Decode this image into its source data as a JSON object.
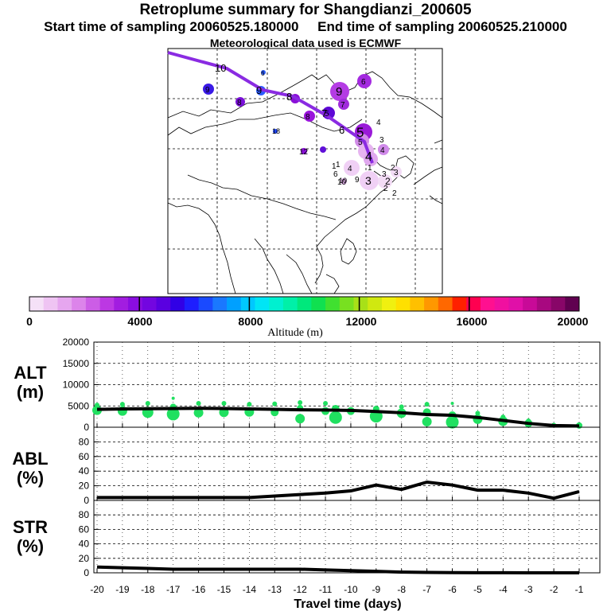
{
  "header": {
    "title": "Retroplume summary for Shangdianzi_200605",
    "sampling_line": "Start time of sampling 20060525.180000     End time of sampling 20060525.210000",
    "met_line": "Meteorological data used is ECMWF"
  },
  "chart_data": [
    {
      "type": "map",
      "description_title": "Retroplume trajectory map",
      "trajectory_labels": [
        "10",
        "9",
        "8",
        "7",
        "6",
        "5",
        "4",
        "3",
        "2",
        "1"
      ],
      "cluster_labels_visible": [
        "9",
        "9",
        "8",
        "8",
        "7",
        "6",
        "6",
        "5",
        "5",
        "4",
        "4",
        "4",
        "3",
        "3",
        "3",
        "2",
        "2",
        "2",
        "1",
        "1",
        "10",
        "10",
        "12",
        "18",
        "6",
        "9"
      ]
    },
    {
      "type": "colorbar",
      "xlabel": "Altitude (m)",
      "range": [
        0,
        20000
      ],
      "tick_labels": [
        "0",
        "4000",
        "8000",
        "12000",
        "16000",
        "20000"
      ],
      "colors": [
        "#f5e1f7",
        "#efc4f3",
        "#e6a6ef",
        "#dc84ea",
        "#cc5de6",
        "#bc38e3",
        "#a21de0",
        "#8a0de0",
        "#7306e0",
        "#5a00e0",
        "#3100e6",
        "#1e1eff",
        "#1a4aff",
        "#1a78ff",
        "#00a0ff",
        "#00c8ff",
        "#00e5f5",
        "#00f0d0",
        "#00f0a8",
        "#00e87c",
        "#10e050",
        "#40e030",
        "#78e020",
        "#a8e018",
        "#d0e810",
        "#f0f010",
        "#ffe000",
        "#ffc000",
        "#ff9800",
        "#ff6800",
        "#ff2000",
        "#ff0050",
        "#ff1090",
        "#f010a0",
        "#e010a8",
        "#c80a98",
        "#a80880",
        "#880668",
        "#600050"
      ]
    },
    {
      "type": "line",
      "name": "ALT",
      "ylabel": "ALT (m)",
      "ylabel_top": "ALT",
      "ylabel_unit": "(m)",
      "ylim": [
        0,
        20000
      ],
      "yticks": [
        "0",
        "5000",
        "10000",
        "15000",
        "20000"
      ],
      "x": [
        -20,
        -19,
        -18,
        -17,
        -16,
        -15,
        -14,
        -13,
        -12,
        -11,
        -10,
        -9,
        -8,
        -7,
        -6,
        -5,
        -4,
        -3,
        -2,
        -1
      ],
      "values": [
        4200,
        4300,
        4350,
        4400,
        4450,
        4400,
        4300,
        4200,
        4100,
        4050,
        3950,
        3700,
        3400,
        3000,
        2800,
        2300,
        1600,
        900,
        400,
        300
      ],
      "scatter_points": [
        {
          "x": -20,
          "y": 4000,
          "r": 6
        },
        {
          "x": -20,
          "y": 5200,
          "r": 3
        },
        {
          "x": -19,
          "y": 3800,
          "r": 6
        },
        {
          "x": -19,
          "y": 5400,
          "r": 3
        },
        {
          "x": -18,
          "y": 3500,
          "r": 7
        },
        {
          "x": -18,
          "y": 5600,
          "r": 3
        },
        {
          "x": -17,
          "y": 3100,
          "r": 8
        },
        {
          "x": -17,
          "y": 4800,
          "r": 4
        },
        {
          "x": -17,
          "y": 6800,
          "r": 2
        },
        {
          "x": -16,
          "y": 3400,
          "r": 6
        },
        {
          "x": -16,
          "y": 5600,
          "r": 3
        },
        {
          "x": -15,
          "y": 3500,
          "r": 6
        },
        {
          "x": -15,
          "y": 5600,
          "r": 3
        },
        {
          "x": -14,
          "y": 3600,
          "r": 6
        },
        {
          "x": -14,
          "y": 5400,
          "r": 3
        },
        {
          "x": -13,
          "y": 3500,
          "r": 5
        },
        {
          "x": -13,
          "y": 5500,
          "r": 3
        },
        {
          "x": -12,
          "y": 2000,
          "r": 6
        },
        {
          "x": -12,
          "y": 4500,
          "r": 4
        },
        {
          "x": -12,
          "y": 5800,
          "r": 3
        },
        {
          "x": -11,
          "y": 3800,
          "r": 5
        },
        {
          "x": -11,
          "y": 5600,
          "r": 3
        },
        {
          "x": -10.6,
          "y": 2300,
          "r": 8
        },
        {
          "x": -10.6,
          "y": 4300,
          "r": 5
        },
        {
          "x": -10,
          "y": 3800,
          "r": 5
        },
        {
          "x": -9,
          "y": 2600,
          "r": 8
        },
        {
          "x": -9,
          "y": 4300,
          "r": 4
        },
        {
          "x": -8,
          "y": 3300,
          "r": 6
        },
        {
          "x": -8,
          "y": 4800,
          "r": 3
        },
        {
          "x": -7,
          "y": 1300,
          "r": 6
        },
        {
          "x": -7,
          "y": 3500,
          "r": 5
        },
        {
          "x": -7,
          "y": 5400,
          "r": 3
        },
        {
          "x": -6,
          "y": 1200,
          "r": 8
        },
        {
          "x": -6,
          "y": 2800,
          "r": 5
        },
        {
          "x": -6,
          "y": 5600,
          "r": 2
        },
        {
          "x": -5,
          "y": 1900,
          "r": 6
        },
        {
          "x": -5,
          "y": 3300,
          "r": 3
        },
        {
          "x": -4,
          "y": 1400,
          "r": 6
        },
        {
          "x": -4,
          "y": 2400,
          "r": 3
        },
        {
          "x": -3,
          "y": 900,
          "r": 5
        },
        {
          "x": -3,
          "y": 1500,
          "r": 3
        },
        {
          "x": -2,
          "y": 500,
          "r": 3
        },
        {
          "x": -1,
          "y": 400,
          "r": 4
        }
      ],
      "point_color": "#20e060"
    },
    {
      "type": "line",
      "name": "ABL",
      "ylabel": "ABL (%)",
      "ylabel_top": "ABL",
      "ylabel_unit": "(%)",
      "ylim": [
        0,
        100
      ],
      "yticks": [
        "0",
        "20",
        "40",
        "60",
        "80"
      ],
      "x": [
        -20,
        -19,
        -18,
        -17,
        -16,
        -15,
        -14,
        -13,
        -12,
        -11,
        -10,
        -9,
        -8,
        -7,
        -6,
        -5,
        -4,
        -3,
        -2,
        -1
      ],
      "values": [
        4,
        4,
        4,
        4,
        4,
        4,
        4,
        6,
        8,
        10,
        13,
        21,
        15,
        25,
        21,
        14,
        14,
        10,
        3,
        12
      ]
    },
    {
      "type": "line",
      "name": "STR",
      "ylabel": "STR (%)",
      "ylabel_top": "STR",
      "ylabel_unit": "(%)",
      "ylim": [
        0,
        100
      ],
      "yticks": [
        "0",
        "20",
        "40",
        "60",
        "80"
      ],
      "x": [
        -20,
        -19,
        -18,
        -17,
        -16,
        -15,
        -14,
        -13,
        -12,
        -11,
        -10,
        -9,
        -8,
        -7,
        -6,
        -5,
        -4,
        -3,
        -2,
        -1
      ],
      "values": [
        8,
        7,
        6,
        5,
        5,
        5,
        5,
        5,
        5,
        4,
        3,
        2,
        1,
        0.5,
        0.3,
        0.2,
        0.1,
        0,
        0,
        0
      ],
      "xlabel": "Travel time (days)",
      "xticks": [
        "-20",
        "-19",
        "-18",
        "-17",
        "-16",
        "-15",
        "-14",
        "-13",
        "-12",
        "-11",
        "-10",
        "-9",
        "-8",
        "-7",
        "-6",
        "-5",
        "-4",
        "-3",
        "-2",
        "-1"
      ]
    }
  ]
}
